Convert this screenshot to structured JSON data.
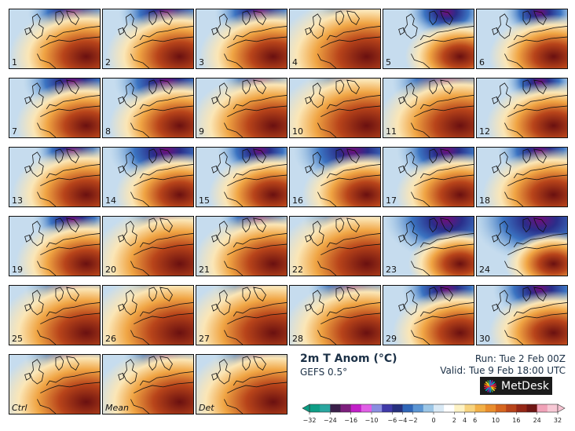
{
  "header": {
    "title": "2m T Anom (°C)",
    "model": "GEFS 0.5°",
    "run": "Run: Tue 2 Feb 00Z",
    "valid": "Valid: Tue 9 Feb 18:00 UTC"
  },
  "logo": {
    "text": "MetDesk"
  },
  "panels": [
    {
      "label": "1",
      "warm": 0.65,
      "cold": 0.45,
      "italic": false
    },
    {
      "label": "2",
      "warm": 0.6,
      "cold": 0.5,
      "italic": false
    },
    {
      "label": "3",
      "warm": 0.6,
      "cold": 0.45,
      "italic": false
    },
    {
      "label": "4",
      "warm": 0.9,
      "cold": 0.3,
      "italic": false
    },
    {
      "label": "5",
      "warm": 0.3,
      "cold": 0.35,
      "italic": false
    },
    {
      "label": "6",
      "warm": 0.45,
      "cold": 0.3,
      "italic": false
    },
    {
      "label": "7",
      "warm": 0.55,
      "cold": 0.55,
      "italic": false
    },
    {
      "label": "8",
      "warm": 0.55,
      "cold": 0.6,
      "italic": false
    },
    {
      "label": "9",
      "warm": 0.75,
      "cold": 0.3,
      "italic": false
    },
    {
      "label": "10",
      "warm": 0.9,
      "cold": 0.45,
      "italic": false
    },
    {
      "label": "11",
      "warm": 0.75,
      "cold": 0.65,
      "italic": false
    },
    {
      "label": "12",
      "warm": 0.5,
      "cold": 0.25,
      "italic": false
    },
    {
      "label": "13",
      "warm": 0.6,
      "cold": 0.3,
      "italic": false
    },
    {
      "label": "14",
      "warm": 0.45,
      "cold": 0.7,
      "italic": false
    },
    {
      "label": "15",
      "warm": 0.45,
      "cold": 0.4,
      "italic": false
    },
    {
      "label": "16",
      "warm": 0.45,
      "cold": 0.75,
      "italic": false
    },
    {
      "label": "17",
      "warm": 0.45,
      "cold": 0.55,
      "italic": false
    },
    {
      "label": "18",
      "warm": 0.55,
      "cold": 0.4,
      "italic": false
    },
    {
      "label": "19",
      "warm": 0.55,
      "cold": 0.35,
      "italic": false
    },
    {
      "label": "20",
      "warm": 0.85,
      "cold": 0.35,
      "italic": false
    },
    {
      "label": "21",
      "warm": 0.7,
      "cold": 0.35,
      "italic": false
    },
    {
      "label": "22",
      "warm": 0.9,
      "cold": 0.55,
      "italic": false
    },
    {
      "label": "23",
      "warm": 0.25,
      "cold": 0.8,
      "italic": false
    },
    {
      "label": "24",
      "warm": 0.2,
      "cold": 0.9,
      "italic": false
    },
    {
      "label": "25",
      "warm": 0.85,
      "cold": 0.5,
      "italic": false
    },
    {
      "label": "26",
      "warm": 0.95,
      "cold": 0.35,
      "italic": false
    },
    {
      "label": "27",
      "warm": 0.9,
      "cold": 0.45,
      "italic": false
    },
    {
      "label": "28",
      "warm": 0.75,
      "cold": 0.45,
      "italic": false
    },
    {
      "label": "29",
      "warm": 0.5,
      "cold": 0.45,
      "italic": false
    },
    {
      "label": "30",
      "warm": 0.45,
      "cold": 0.5,
      "italic": false
    },
    {
      "label": "Ctrl",
      "warm": 0.85,
      "cold": 0.5,
      "italic": true
    },
    {
      "label": "Mean",
      "warm": 0.8,
      "cold": 0.4,
      "italic": true
    },
    {
      "label": "Det",
      "warm": 0.85,
      "cold": 0.45,
      "italic": true
    }
  ],
  "colorbar": {
    "ticks": [
      "−32",
      "−24",
      "−16",
      "−10",
      "−6",
      "−4",
      "−2",
      "0",
      "2",
      "4",
      "6",
      "10",
      "16",
      "24",
      "32"
    ],
    "tick_values": [
      -32,
      -24,
      -16,
      -10,
      -6,
      -4,
      -2,
      0,
      2,
      4,
      6,
      10,
      16,
      24,
      32
    ],
    "colors": [
      "#0e9e86",
      "#2aa7a0",
      "#3a1f4a",
      "#7d1f7d",
      "#c21fc8",
      "#e05fe6",
      "#8a8de0",
      "#3f3aa8",
      "#26307e",
      "#2f66b8",
      "#5b95d3",
      "#9cc6e6",
      "#d9e9f5",
      "#ffffff",
      "#fdf2c4",
      "#f7d37e",
      "#f2b047",
      "#e98d2d",
      "#d6661f",
      "#b8441a",
      "#952716",
      "#6f1614",
      "#f0a2b8",
      "#f7c8d5"
    ]
  }
}
